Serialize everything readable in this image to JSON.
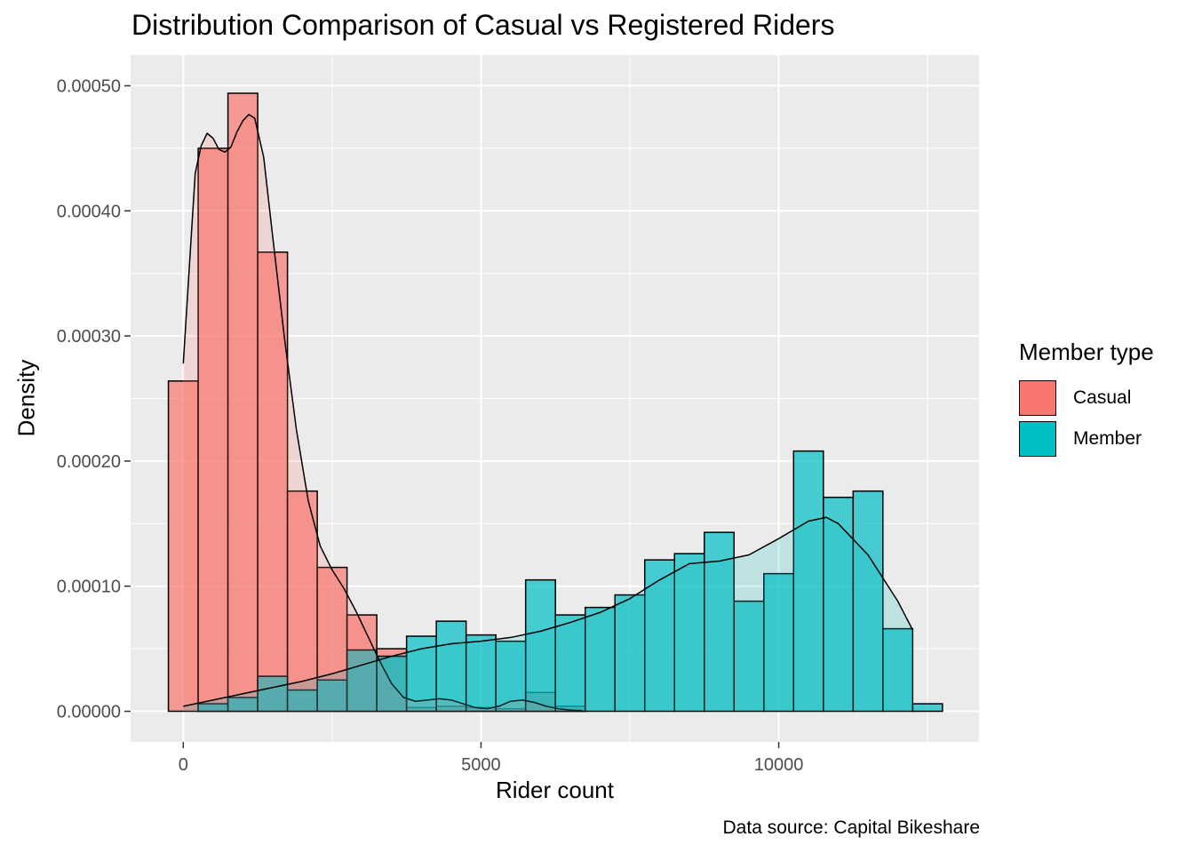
{
  "chart_data": {
    "type": "histogram",
    "title": "Distribution Comparison of Casual vs Registered Riders",
    "xlabel": "Rider count",
    "ylabel": "Density",
    "caption": "Data source: Capital Bikeshare",
    "legend_title": "Member type",
    "legend_position": "right",
    "grid": true,
    "xlim": [
      -885,
      13364
    ],
    "ylim": [
      -2.45e-05,
      0.0005245
    ],
    "x_ticks": [
      0,
      5000,
      10000
    ],
    "x_tick_labels": [
      "0",
      "5000",
      "10000"
    ],
    "y_ticks": [
      0,
      0.0001,
      0.0002,
      0.0003,
      0.0004,
      0.0005
    ],
    "y_tick_labels": [
      "0.00000",
      "0.00010",
      "0.00020",
      "0.00030",
      "0.00040",
      "0.00050"
    ],
    "bin_width": 500,
    "series": [
      {
        "name": "Casual",
        "color": "#F8766D",
        "bin_starts": [
          -250,
          250,
          750,
          1250,
          1750,
          2250,
          2750,
          3250,
          3750,
          4250,
          4750,
          5250,
          5750,
          6250,
          6750,
          7250,
          7750,
          8250,
          8750,
          9250,
          9750,
          10250,
          10750,
          11250,
          11750,
          12250
        ],
        "density": [
          0.000264,
          0.00045,
          0.000494,
          0.000367,
          0.000176,
          0.000115,
          7.7e-05,
          5e-05,
          3e-06,
          4e-06,
          3e-06,
          2e-06,
          1.5e-05,
          4e-06,
          0,
          0,
          0,
          0,
          0,
          0,
          0,
          0,
          0,
          0,
          0,
          0
        ],
        "kde_x": [
          0,
          200,
          300,
          400,
          500,
          600,
          700,
          800,
          900,
          1000,
          1100,
          1200,
          1350,
          1500,
          1700,
          1900,
          2100,
          2300,
          2500,
          2700,
          2900,
          3100,
          3300,
          3500,
          3700,
          3900,
          4100,
          4300,
          4500,
          4700,
          4900,
          5100,
          5300,
          5500,
          5700,
          5900,
          6100,
          6300,
          6500,
          6700
        ],
        "kde_density": [
          0.000278,
          0.00043,
          0.000452,
          0.000462,
          0.000458,
          0.000449,
          0.000447,
          0.000451,
          0.000463,
          0.000472,
          0.000477,
          0.000474,
          0.000443,
          0.00038,
          0.000298,
          0.000225,
          0.000168,
          0.000132,
          0.000113,
          9.8e-05,
          8e-05,
          6e-05,
          4e-05,
          2.2e-05,
          1.1e-05,
          8e-06,
          9e-06,
          1e-05,
          9e-06,
          6e-06,
          3e-06,
          2e-06,
          4e-06,
          8e-06,
          9e-06,
          7e-06,
          4e-06,
          2e-06,
          1e-06,
          5e-07
        ]
      },
      {
        "name": "Member",
        "color": "#00BFC4",
        "bin_starts": [
          -250,
          250,
          750,
          1250,
          1750,
          2250,
          2750,
          3250,
          3750,
          4250,
          4750,
          5250,
          5750,
          6250,
          6750,
          7250,
          7750,
          8250,
          8750,
          9250,
          9750,
          10250,
          10750,
          11250,
          11750,
          12250
        ],
        "density": [
          0,
          6e-06,
          1.1e-05,
          2.8e-05,
          1.7e-05,
          2.5e-05,
          4.9e-05,
          4.4e-05,
          6e-05,
          7.2e-05,
          6.1e-05,
          5.6e-05,
          0.000105,
          7.7e-05,
          8.3e-05,
          9.3e-05,
          0.000121,
          0.000126,
          0.000143,
          8.8e-05,
          0.00011,
          0.000208,
          0.000171,
          0.000176,
          6.6e-05,
          6e-06
        ],
        "kde_x": [
          0,
          500,
          1000,
          1500,
          2000,
          2500,
          3000,
          3500,
          4000,
          4500,
          5000,
          5500,
          6000,
          6500,
          7000,
          7500,
          8000,
          8500,
          9000,
          9500,
          10000,
          10500,
          10800,
          11000,
          11500,
          12000,
          12250
        ],
        "kde_density": [
          4e-06,
          9e-06,
          1.4e-05,
          1.9e-05,
          2.4e-05,
          3e-05,
          3.7e-05,
          4.4e-05,
          5e-05,
          5.4e-05,
          5.6e-05,
          5.9e-05,
          6.4e-05,
          7.1e-05,
          7.9e-05,
          9e-05,
          0.000105,
          0.000118,
          0.00012,
          0.000125,
          0.000138,
          0.000152,
          0.000155,
          0.00015,
          0.000125,
          8.8e-05,
          6.5e-05
        ]
      }
    ]
  }
}
